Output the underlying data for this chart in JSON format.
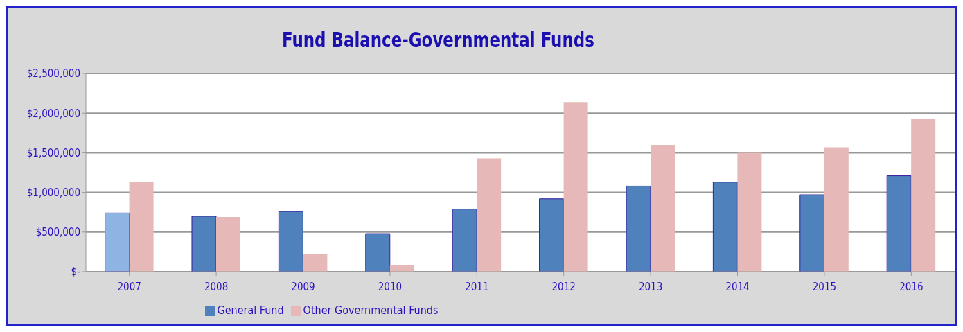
{
  "chart_data": {
    "type": "bar",
    "title": "Fund Balance-Governmental Funds",
    "categories": [
      "2007",
      "2008",
      "2009",
      "2010",
      "2011",
      "2012",
      "2013",
      "2014",
      "2015",
      "2016"
    ],
    "series": [
      {
        "name": "General Fund",
        "color": "#4f81bd",
        "colors": [
          "#8db4e2",
          "#4f81bd",
          "#4f81bd",
          "#4f81bd",
          "#4f81bd",
          "#4f81bd",
          "#4f81bd",
          "#4f81bd",
          "#4f81bd",
          "#4f81bd"
        ],
        "values": [
          740000,
          700000,
          760000,
          480000,
          790000,
          920000,
          1080000,
          1130000,
          970000,
          1210000
        ]
      },
      {
        "name": "Other Governmental Funds",
        "color": "#e6b8b7",
        "values": [
          1130000,
          690000,
          220000,
          80000,
          1430000,
          2140000,
          1600000,
          1500000,
          1570000,
          1930000
        ]
      }
    ],
    "ylim": [
      0,
      2500000
    ],
    "yticks": [
      {
        "value": 0,
        "label": "$-"
      },
      {
        "value": 500000,
        "label": "$500,000"
      },
      {
        "value": 1000000,
        "label": "$1,000,000"
      },
      {
        "value": 1500000,
        "label": "$1,500,000"
      },
      {
        "value": 2000000,
        "label": "$2,000,000"
      },
      {
        "value": 2500000,
        "label": "$2,500,000"
      }
    ],
    "grid": "y",
    "legend": "bottom"
  }
}
